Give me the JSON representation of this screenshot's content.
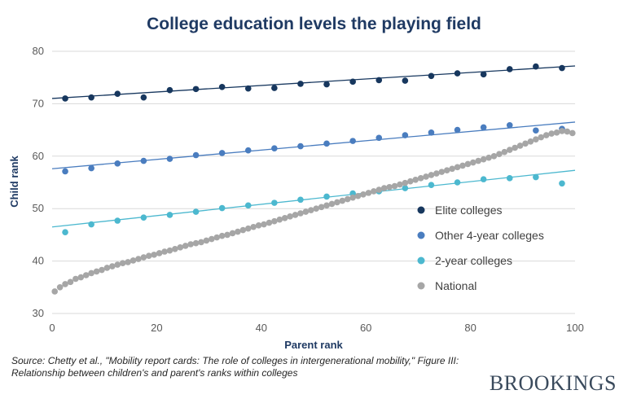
{
  "title": "College education levels the playing field",
  "source": "Source: Chetty et al., \"Mobility report cards: The role of colleges in intergenerational mobility,\" Figure III: Relationship between children's and parent's ranks within colleges",
  "brand": "BROOKINGS",
  "chart_data": {
    "type": "scatter",
    "xlabel": "Parent rank",
    "ylabel": "Child rank",
    "xlim": [
      0,
      100
    ],
    "ylim": [
      30,
      80
    ],
    "xticks": [
      0,
      20,
      40,
      60,
      80,
      100
    ],
    "yticks": [
      30,
      40,
      50,
      60,
      70,
      80
    ],
    "grid": "horizontal",
    "legend_position": "right",
    "series": [
      {
        "name": "Elite colleges",
        "color": "#17375e",
        "x": [
          2.5,
          7.5,
          12.5,
          17.5,
          22.5,
          27.5,
          32.5,
          37.5,
          42.5,
          47.5,
          52.5,
          57.5,
          62.5,
          67.5,
          72.5,
          77.5,
          82.5,
          87.5,
          92.5,
          97.5
        ],
        "y": [
          71.0,
          71.2,
          71.9,
          71.2,
          72.6,
          72.8,
          73.2,
          72.9,
          73.0,
          73.8,
          73.7,
          74.2,
          74.5,
          74.4,
          75.3,
          75.8,
          75.6,
          76.6,
          77.1,
          76.8
        ],
        "fit": [
          71.0,
          77.2
        ]
      },
      {
        "name": "Other 4-year colleges",
        "color": "#4a7dbf",
        "x": [
          2.5,
          7.5,
          12.5,
          17.5,
          22.5,
          27.5,
          32.5,
          37.5,
          42.5,
          47.5,
          52.5,
          57.5,
          62.5,
          67.5,
          72.5,
          77.5,
          82.5,
          87.5,
          92.5,
          97.5
        ],
        "y": [
          57.1,
          57.7,
          58.6,
          59.1,
          59.5,
          60.2,
          60.6,
          61.1,
          61.5,
          61.9,
          62.4,
          62.9,
          63.5,
          64.0,
          64.5,
          65.0,
          65.5,
          65.9,
          64.9,
          65.2
        ],
        "fit": [
          57.6,
          66.5
        ]
      },
      {
        "name": "2-year colleges",
        "color": "#4cb8cf",
        "x": [
          2.5,
          7.5,
          12.5,
          17.5,
          22.5,
          27.5,
          32.5,
          37.5,
          42.5,
          47.5,
          52.5,
          57.5,
          62.5,
          67.5,
          72.5,
          77.5,
          82.5,
          87.5,
          92.5,
          97.5
        ],
        "y": [
          45.5,
          47.0,
          47.7,
          48.3,
          48.8,
          49.4,
          50.1,
          50.6,
          51.1,
          51.7,
          52.3,
          52.9,
          53.3,
          53.9,
          54.5,
          55.0,
          55.6,
          55.8,
          56.0,
          54.8
        ],
        "fit": [
          46.5,
          57.3
        ]
      },
      {
        "name": "National",
        "color": "#a6a6a6",
        "x": [
          0.5,
          1.5,
          2.5,
          3.5,
          4.5,
          5.5,
          6.5,
          7.5,
          8.5,
          9.5,
          10.5,
          11.5,
          12.5,
          13.5,
          14.5,
          15.5,
          16.5,
          17.5,
          18.5,
          19.5,
          20.5,
          21.5,
          22.5,
          23.5,
          24.5,
          25.5,
          26.5,
          27.5,
          28.5,
          29.5,
          30.5,
          31.5,
          32.5,
          33.5,
          34.5,
          35.5,
          36.5,
          37.5,
          38.5,
          39.5,
          40.5,
          41.5,
          42.5,
          43.5,
          44.5,
          45.5,
          46.5,
          47.5,
          48.5,
          49.5,
          50.5,
          51.5,
          52.5,
          53.5,
          54.5,
          55.5,
          56.5,
          57.5,
          58.5,
          59.5,
          60.5,
          61.5,
          62.5,
          63.5,
          64.5,
          65.5,
          66.5,
          67.5,
          68.5,
          69.5,
          70.5,
          71.5,
          72.5,
          73.5,
          74.5,
          75.5,
          76.5,
          77.5,
          78.5,
          79.5,
          80.5,
          81.5,
          82.5,
          83.5,
          84.5,
          85.5,
          86.5,
          87.5,
          88.5,
          89.5,
          90.5,
          91.5,
          92.5,
          93.5,
          94.5,
          95.5,
          96.5,
          97.5,
          98.5,
          99.5
        ],
        "y": [
          34.2,
          35.0,
          35.6,
          36.0,
          36.6,
          36.9,
          37.3,
          37.7,
          38.0,
          38.3,
          38.7,
          39.0,
          39.3,
          39.6,
          39.8,
          40.1,
          40.4,
          40.7,
          41.0,
          41.2,
          41.5,
          41.8,
          42.0,
          42.3,
          42.6,
          42.9,
          43.2,
          43.4,
          43.6,
          43.9,
          44.2,
          44.5,
          44.8,
          45.0,
          45.3,
          45.6,
          45.9,
          46.2,
          46.5,
          46.8,
          47.0,
          47.3,
          47.6,
          47.9,
          48.2,
          48.5,
          48.8,
          49.1,
          49.4,
          49.7,
          50.0,
          50.3,
          50.6,
          50.9,
          51.2,
          51.5,
          51.8,
          52.1,
          52.4,
          52.7,
          53.0,
          53.3,
          53.6,
          53.9,
          54.1,
          54.3,
          54.6,
          54.9,
          55.2,
          55.5,
          55.8,
          56.1,
          56.4,
          56.7,
          57.0,
          57.3,
          57.6,
          57.9,
          58.2,
          58.5,
          58.8,
          59.1,
          59.4,
          59.7,
          60.0,
          60.4,
          60.8,
          61.2,
          61.6,
          62.0,
          62.4,
          62.8,
          63.2,
          63.6,
          64.0,
          64.3,
          64.5,
          64.8,
          64.7,
          64.4
        ]
      }
    ]
  }
}
